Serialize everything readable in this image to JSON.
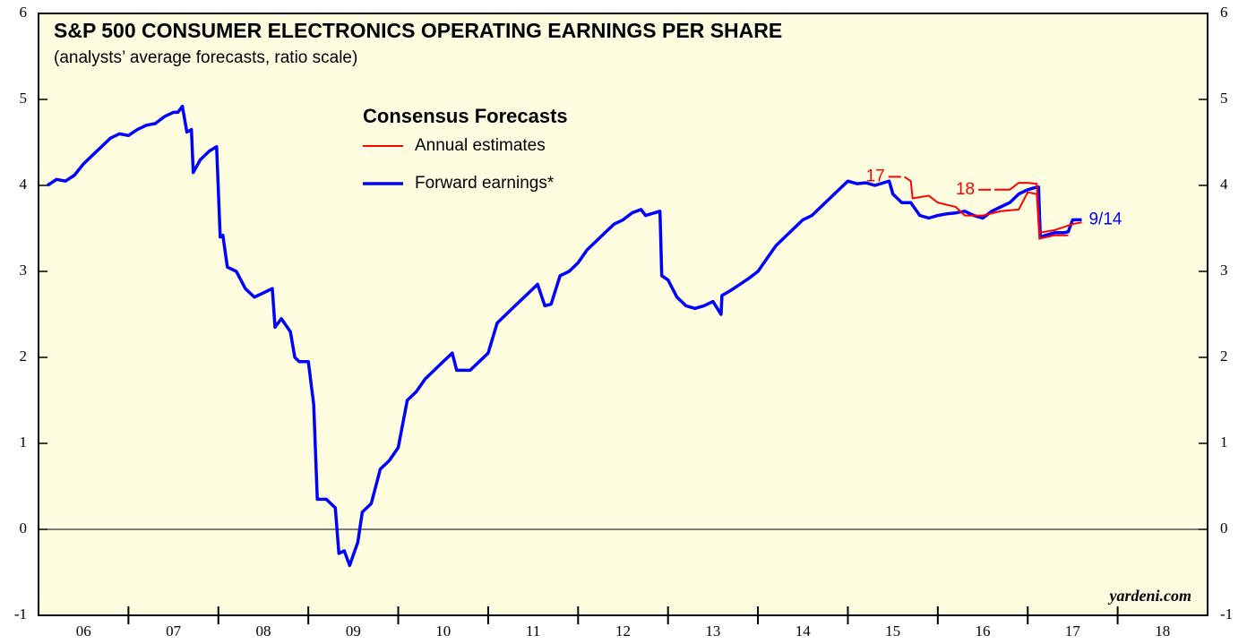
{
  "chart_data": {
    "type": "line",
    "title": "S&P 500 CONSUMER ELECTRONICS OPERATING EARNINGS PER SHARE",
    "subtitle": "(analysts’ average forecasts, ratio scale)",
    "legend_title": "Consensus Forecasts",
    "source": "yardeni.com",
    "annotations": [
      {
        "text": "9/14",
        "x": 2017.62,
        "y": 3.6,
        "color": "#0000ff"
      }
    ],
    "xlim": [
      2006,
      2019
    ],
    "xticks": [
      {
        "value": 2006.5,
        "label": "06"
      },
      {
        "value": 2007.5,
        "label": "07"
      },
      {
        "value": 2008.5,
        "label": "08"
      },
      {
        "value": 2009.5,
        "label": "09"
      },
      {
        "value": 2010.5,
        "label": "10"
      },
      {
        "value": 2011.5,
        "label": "11"
      },
      {
        "value": 2012.5,
        "label": "12"
      },
      {
        "value": 2013.5,
        "label": "13"
      },
      {
        "value": 2014.5,
        "label": "14"
      },
      {
        "value": 2015.5,
        "label": "15"
      },
      {
        "value": 2016.5,
        "label": "16"
      },
      {
        "value": 2017.5,
        "label": "17"
      },
      {
        "value": 2018.5,
        "label": "18"
      }
    ],
    "ylim": [
      -1,
      6
    ],
    "yticks": [
      -1,
      0,
      1,
      2,
      3,
      4,
      5,
      6
    ],
    "series": [
      {
        "name": "Forward earnings*",
        "color": "#0000ff",
        "x": [
          2006.1,
          2006.2,
          2006.3,
          2006.4,
          2006.5,
          2006.6,
          2006.7,
          2006.8,
          2006.9,
          2007.0,
          2007.1,
          2007.2,
          2007.3,
          2007.4,
          2007.5,
          2007.55,
          2007.6,
          2007.65,
          2007.7,
          2007.72,
          2007.8,
          2007.9,
          2007.98,
          2008.02,
          2008.05,
          2008.1,
          2008.2,
          2008.3,
          2008.4,
          2008.5,
          2008.6,
          2008.63,
          2008.7,
          2008.8,
          2008.85,
          2008.9,
          2009.0,
          2009.06,
          2009.1,
          2009.2,
          2009.3,
          2009.34,
          2009.4,
          2009.46,
          2009.5,
          2009.55,
          2009.6,
          2009.7,
          2009.8,
          2009.9,
          2010.0,
          2010.1,
          2010.2,
          2010.3,
          2010.4,
          2010.5,
          2010.6,
          2010.65,
          2010.8,
          2010.9,
          2011.0,
          2011.1,
          2011.2,
          2011.3,
          2011.4,
          2011.5,
          2011.55,
          2011.63,
          2011.7,
          2011.8,
          2011.9,
          2012.0,
          2012.1,
          2012.2,
          2012.3,
          2012.4,
          2012.5,
          2012.6,
          2012.7,
          2012.75,
          2012.91,
          2012.93,
          2013.0,
          2013.1,
          2013.2,
          2013.3,
          2013.4,
          2013.5,
          2013.59,
          2013.6,
          2013.7,
          2013.8,
          2013.9,
          2014.0,
          2014.1,
          2014.2,
          2014.3,
          2014.4,
          2014.5,
          2014.6,
          2014.7,
          2014.8,
          2014.9,
          2015.0,
          2015.1,
          2015.2,
          2015.3,
          2015.46,
          2015.5,
          2015.6,
          2015.7,
          2015.8,
          2015.9,
          2016.0,
          2016.1,
          2016.2,
          2016.3,
          2016.4,
          2016.5,
          2016.6,
          2016.7,
          2016.8,
          2016.9,
          2017.0,
          2017.1,
          2017.12,
          2017.14,
          2017.2,
          2017.3,
          2017.4,
          2017.45,
          2017.5,
          2017.6
        ],
        "values": [
          4.0,
          4.07,
          4.05,
          4.12,
          4.25,
          4.35,
          4.45,
          4.55,
          4.6,
          4.58,
          4.65,
          4.7,
          4.72,
          4.8,
          4.85,
          4.85,
          4.92,
          4.62,
          4.65,
          4.15,
          4.3,
          4.4,
          4.45,
          3.4,
          3.42,
          3.05,
          3.0,
          2.8,
          2.7,
          2.75,
          2.8,
          2.35,
          2.45,
          2.3,
          2.0,
          1.95,
          1.95,
          1.45,
          0.35,
          0.35,
          0.25,
          -0.28,
          -0.25,
          -0.42,
          -0.3,
          -0.15,
          0.2,
          0.3,
          0.7,
          0.8,
          0.95,
          1.5,
          1.6,
          1.75,
          1.85,
          1.95,
          2.05,
          1.85,
          1.85,
          1.95,
          2.05,
          2.4,
          2.5,
          2.6,
          2.7,
          2.8,
          2.85,
          2.6,
          2.62,
          2.95,
          3.0,
          3.1,
          3.25,
          3.35,
          3.45,
          3.55,
          3.6,
          3.68,
          3.72,
          3.65,
          3.7,
          2.95,
          2.9,
          2.7,
          2.6,
          2.57,
          2.6,
          2.65,
          2.5,
          2.72,
          2.78,
          2.85,
          2.92,
          3.0,
          3.15,
          3.3,
          3.4,
          3.5,
          3.6,
          3.65,
          3.75,
          3.85,
          3.95,
          4.05,
          4.02,
          4.03,
          4.0,
          4.05,
          3.9,
          3.8,
          3.8,
          3.65,
          3.62,
          3.65,
          3.67,
          3.68,
          3.7,
          3.65,
          3.62,
          3.7,
          3.75,
          3.8,
          3.9,
          3.95,
          3.98,
          3.98,
          3.4,
          3.42,
          3.45,
          3.45,
          3.46,
          3.6,
          3.6
        ]
      },
      {
        "name": "Annual estimates",
        "color": "#ff0000",
        "lines": [
          {
            "label": "17",
            "x": [
              2015.63,
              2015.7,
              2015.72,
              2015.9,
              2016.0,
              2016.2,
              2016.3,
              2016.5,
              2016.7,
              2016.9,
              2017.0,
              2017.1,
              2017.13,
              2017.3,
              2017.45
            ],
            "values": [
              4.1,
              4.05,
              3.85,
              3.88,
              3.8,
              3.75,
              3.65,
              3.65,
              3.7,
              3.72,
              3.92,
              3.9,
              3.38,
              3.42,
              3.42
            ]
          },
          {
            "label": "18",
            "x": [
              2016.63,
              2016.8,
              2016.9,
              2017.0,
              2017.1,
              2017.13,
              2017.3,
              2017.5,
              2017.6
            ],
            "values": [
              3.95,
              3.95,
              4.03,
              4.03,
              4.02,
              3.45,
              3.48,
              3.55,
              3.57
            ]
          }
        ]
      }
    ]
  }
}
